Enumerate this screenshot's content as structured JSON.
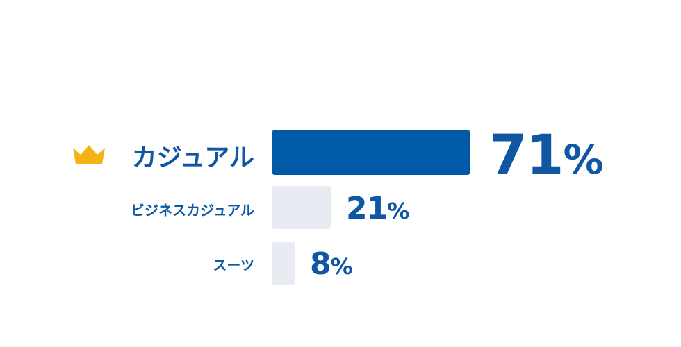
{
  "chart_data": {
    "type": "bar",
    "orientation": "horizontal",
    "categories": [
      "カジュアル",
      "ビジネスカジュアル",
      "スーツ"
    ],
    "values": [
      71,
      21,
      8
    ],
    "value_labels": [
      "71",
      "21",
      "8"
    ],
    "unit": "%",
    "xlim": [
      0,
      100
    ],
    "grid": false,
    "legend": "none",
    "highlight_index": 0,
    "highlight_icon": "crown-icon"
  },
  "colors": {
    "highlight_bar": "#005aa8",
    "other_bar": "#e8ebf1",
    "text": "#0f56a3",
    "crown": "#f3b313"
  }
}
